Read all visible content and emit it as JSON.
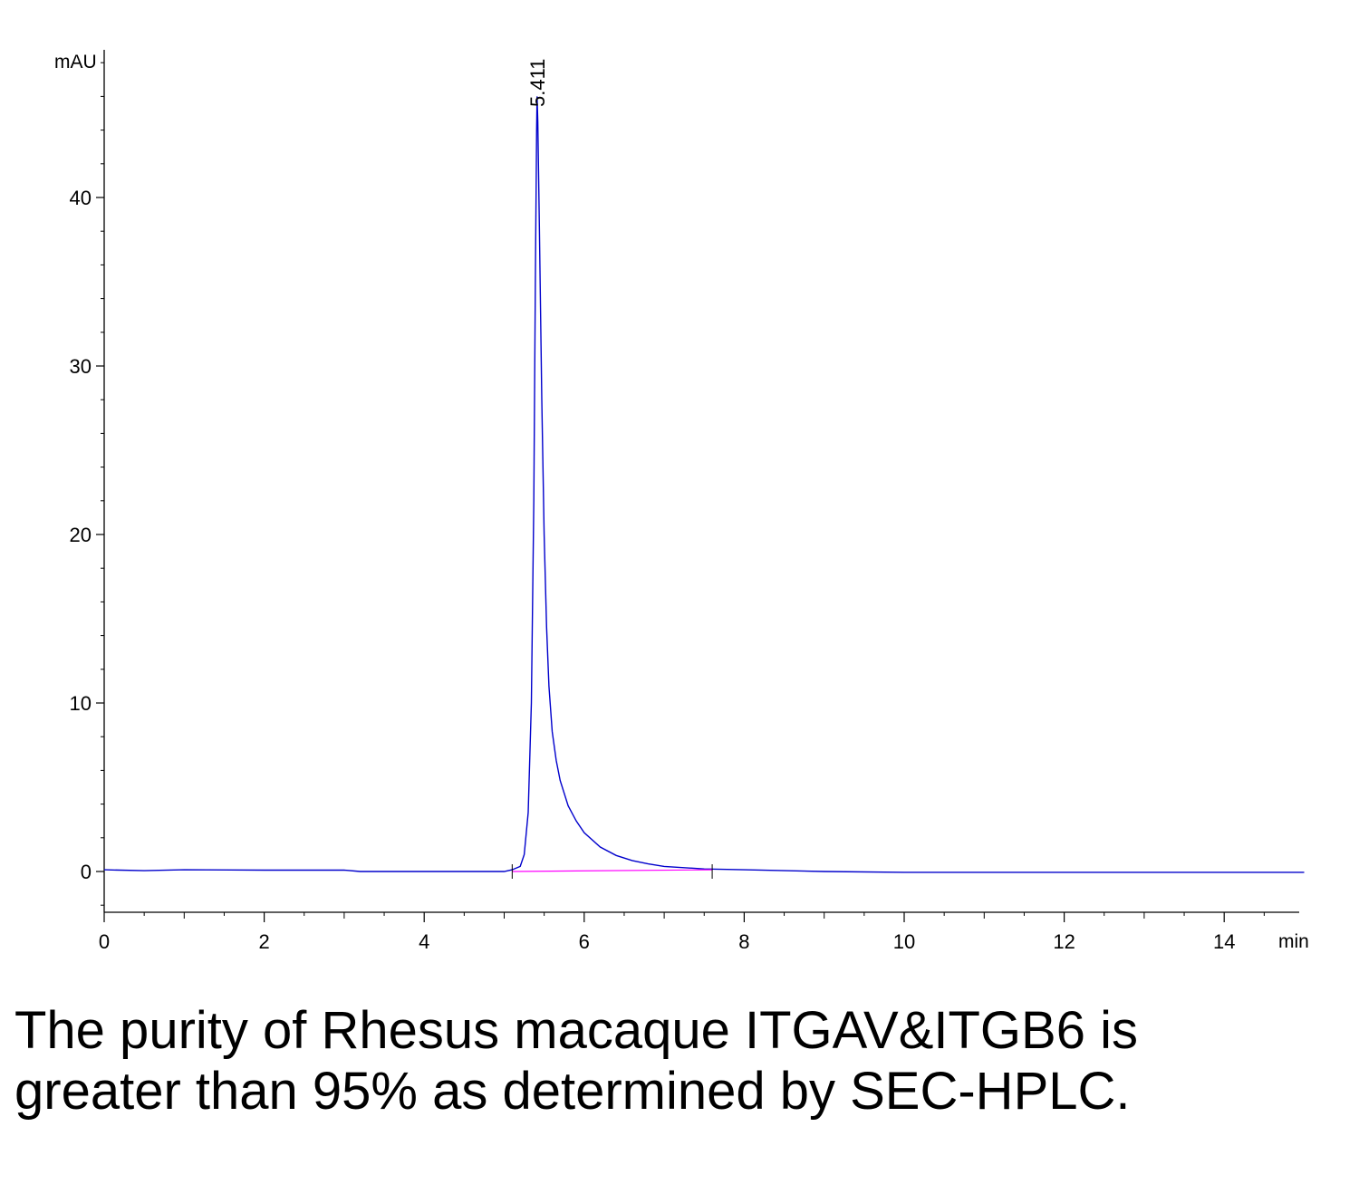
{
  "chart_data": {
    "type": "line",
    "ylabel": "mAU",
    "xlabel": "min",
    "xlim": [
      0,
      15
    ],
    "ylim": [
      -2.5,
      48.5
    ],
    "x_ticks": [
      0,
      2,
      4,
      6,
      8,
      10,
      12,
      14
    ],
    "y_ticks": [
      0,
      10,
      20,
      30,
      40
    ],
    "grid": false,
    "series": [
      {
        "color": "#0000cc",
        "x": [
          0,
          0.5,
          1,
          2,
          3,
          3.2,
          4,
          5.0,
          5.1,
          5.2,
          5.25,
          5.3,
          5.34,
          5.37,
          5.39,
          5.405,
          5.411,
          5.42,
          5.44,
          5.47,
          5.5,
          5.53,
          5.56,
          5.6,
          5.65,
          5.7,
          5.8,
          5.9,
          6.0,
          6.2,
          6.4,
          6.6,
          6.8,
          7.0,
          7.5,
          8.0,
          9.0,
          10.0,
          11.0,
          12.0,
          13.0,
          14.0,
          15.0
        ],
        "y": [
          0.1,
          0.05,
          0.1,
          0.08,
          0.08,
          0.0,
          0.0,
          0.0,
          0.1,
          0.3,
          1.0,
          3.5,
          10.0,
          22.0,
          35.0,
          44.0,
          46.0,
          44.5,
          38.0,
          28.0,
          20.0,
          14.5,
          11.0,
          8.3,
          6.6,
          5.4,
          3.9,
          3.0,
          2.3,
          1.45,
          0.95,
          0.65,
          0.45,
          0.3,
          0.15,
          0.1,
          0.0,
          -0.05,
          -0.05,
          -0.05,
          -0.05,
          -0.05,
          -0.05
        ]
      },
      {
        "color": "#ff00ff",
        "x": [
          5.1,
          7.6
        ],
        "y": [
          0.0,
          0.1
        ]
      }
    ],
    "annotations": [
      {
        "text": "5.411",
        "x": 5.411,
        "y": 46.0
      }
    ],
    "baseline_markers": [
      5.1,
      7.6
    ]
  },
  "caption": "The purity of Rhesus macaque ITGAV&ITGB6 is greater than 95% as determined by SEC-HPLC."
}
